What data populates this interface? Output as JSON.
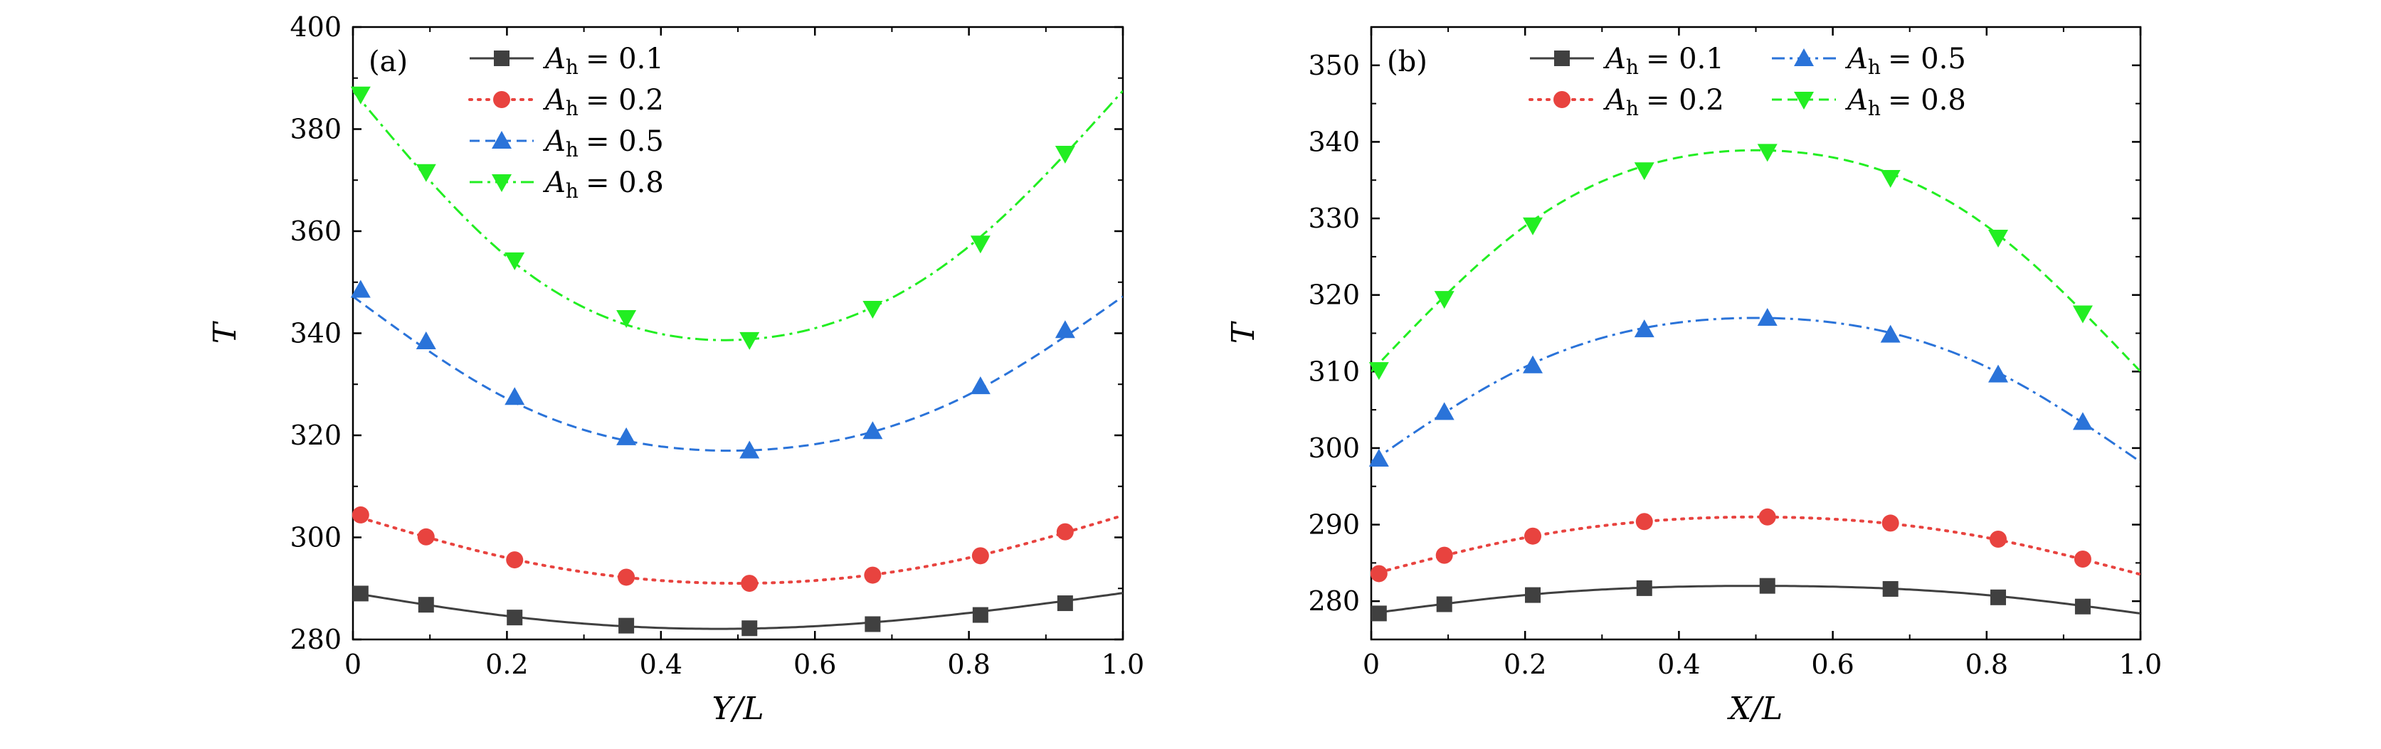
{
  "chart_data": [
    {
      "type": "line",
      "panel_label": "(a)",
      "xlabel": "Y/L",
      "ylabel": "T",
      "xlim": [
        0,
        1.0
      ],
      "ylim": [
        280,
        400
      ],
      "xticks": [
        0,
        0.2,
        0.4,
        0.6,
        0.8,
        1.0
      ],
      "xtick_labels": [
        "0",
        "0.2",
        "0.4",
        "0.6",
        "0.8",
        "1.0"
      ],
      "yticks": [
        280,
        300,
        320,
        340,
        360,
        380,
        400
      ],
      "ytick_labels": [
        "280",
        "300",
        "320",
        "340",
        "360",
        "380",
        "400"
      ],
      "legend_position": "top-left",
      "legend_columns": 1,
      "grid": false,
      "curve_x_points": [
        0.0,
        0.2,
        0.5,
        0.8,
        1.0
      ],
      "series": [
        {
          "name": "A_h = 0.1",
          "legend_var": "A",
          "legend_sub": "h",
          "legend_value": "= 0.1",
          "color": "#404040",
          "marker": "square",
          "line_style": "solid",
          "x": [
            0.01,
            0.095,
            0.21,
            0.355,
            0.515,
            0.675,
            0.815,
            0.925
          ],
          "y": [
            289,
            286.8,
            284.3,
            282.7,
            282.2,
            283.0,
            284.8,
            287.1
          ],
          "curve_y": [
            289.1,
            284.6,
            282.1,
            285.2,
            289.1
          ]
        },
        {
          "name": "A_h = 0.2",
          "legend_var": "A",
          "legend_sub": "h",
          "legend_value": "= 0.2",
          "color": "#e8433f",
          "marker": "circle",
          "line_style": "dotted",
          "x": [
            0.01,
            0.095,
            0.21,
            0.355,
            0.515,
            0.675,
            0.815,
            0.925
          ],
          "y": [
            304.4,
            300.1,
            295.6,
            292.2,
            291.0,
            292.6,
            296.4,
            301.1
          ],
          "curve_y": [
            304.3,
            296.0,
            291.0,
            296.0,
            304.3
          ]
        },
        {
          "name": "A_h = 0.5",
          "legend_var": "A",
          "legend_sub": "h",
          "legend_value": "= 0.5",
          "color": "#2a73d9",
          "marker": "triangle-up",
          "line_style": "dashed",
          "x": [
            0.01,
            0.095,
            0.21,
            0.355,
            0.515,
            0.675,
            0.815,
            0.925
          ],
          "y": [
            348.5,
            338.4,
            327.5,
            319.6,
            317.0,
            320.8,
            329.6,
            340.6
          ],
          "curve_y": [
            347.2,
            327.2,
            317.0,
            328.0,
            347.2
          ]
        },
        {
          "name": "A_h = 0.8",
          "legend_var": "A",
          "legend_sub": "h",
          "legend_value": "= 0.8",
          "color": "#22ee22",
          "marker": "triangle-down",
          "line_style": "dashdot",
          "x": [
            0.01,
            0.095,
            0.21,
            0.355,
            0.515,
            0.675,
            0.815,
            0.925
          ],
          "y": [
            386.8,
            371.6,
            354.3,
            343.0,
            338.7,
            344.8,
            357.6,
            375.2
          ],
          "curve_y": [
            387.5,
            355.0,
            338.7,
            357.0,
            387.5
          ]
        }
      ]
    },
    {
      "type": "line",
      "panel_label": "(b)",
      "xlabel": "X/L",
      "ylabel": "T",
      "xlim": [
        0,
        1.0
      ],
      "ylim": [
        275,
        355
      ],
      "xticks": [
        0,
        0.2,
        0.4,
        0.6,
        0.8,
        1.0
      ],
      "xtick_labels": [
        "0",
        "0.2",
        "0.4",
        "0.6",
        "0.8",
        "1.0"
      ],
      "yticks": [
        280,
        290,
        300,
        310,
        320,
        330,
        340,
        350
      ],
      "ytick_labels": [
        "280",
        "290",
        "300",
        "310",
        "320",
        "330",
        "340",
        "350"
      ],
      "legend_position": "top-center",
      "legend_columns": 2,
      "grid": false,
      "curve_x_points": [
        0.0,
        0.2,
        0.5,
        0.8,
        1.0
      ],
      "series": [
        {
          "name": "A_h = 0.1",
          "legend_var": "A",
          "legend_sub": "h",
          "legend_value": "= 0.1",
          "color": "#404040",
          "marker": "square",
          "line_style": "solid",
          "x": [
            0.01,
            0.095,
            0.21,
            0.355,
            0.515,
            0.675,
            0.815,
            0.925
          ],
          "y": [
            278.4,
            279.6,
            280.8,
            281.7,
            282.0,
            281.6,
            280.5,
            279.3
          ],
          "curve_y": [
            278.4,
            280.8,
            282.0,
            280.8,
            278.4
          ]
        },
        {
          "name": "A_h = 0.2",
          "legend_var": "A",
          "legend_sub": "h",
          "legend_value": "= 0.2",
          "color": "#e8433f",
          "marker": "circle",
          "line_style": "dotted",
          "x": [
            0.01,
            0.095,
            0.21,
            0.355,
            0.515,
            0.675,
            0.815,
            0.925
          ],
          "y": [
            283.6,
            286.0,
            288.5,
            290.4,
            291.0,
            290.2,
            288.1,
            285.5
          ],
          "curve_y": [
            283.5,
            288.3,
            291.0,
            288.3,
            283.5
          ]
        },
        {
          "name": "A_h = 0.5",
          "legend_var": "A",
          "legend_sub": "h",
          "legend_value": "= 0.5",
          "color": "#2a73d9",
          "marker": "triangle-up",
          "line_style": "dashdot",
          "x": [
            0.01,
            0.095,
            0.21,
            0.355,
            0.515,
            0.675,
            0.815,
            0.925
          ],
          "y": [
            298.6,
            304.7,
            310.8,
            315.5,
            317.0,
            314.8,
            309.6,
            303.4
          ],
          "curve_y": [
            298.2,
            310.6,
            317.0,
            310.6,
            298.2
          ]
        },
        {
          "name": "A_h = 0.8",
          "legend_var": "A",
          "legend_sub": "h",
          "legend_value": "= 0.8",
          "color": "#22ee22",
          "marker": "triangle-down",
          "line_style": "dashed",
          "x": [
            0.01,
            0.095,
            0.21,
            0.355,
            0.515,
            0.675,
            0.815,
            0.925
          ],
          "y": [
            310.2,
            319.5,
            329.1,
            336.3,
            338.7,
            335.3,
            327.5,
            317.6
          ],
          "curve_y": [
            310.0,
            329.0,
            338.9,
            329.0,
            310.0
          ]
        }
      ]
    }
  ]
}
